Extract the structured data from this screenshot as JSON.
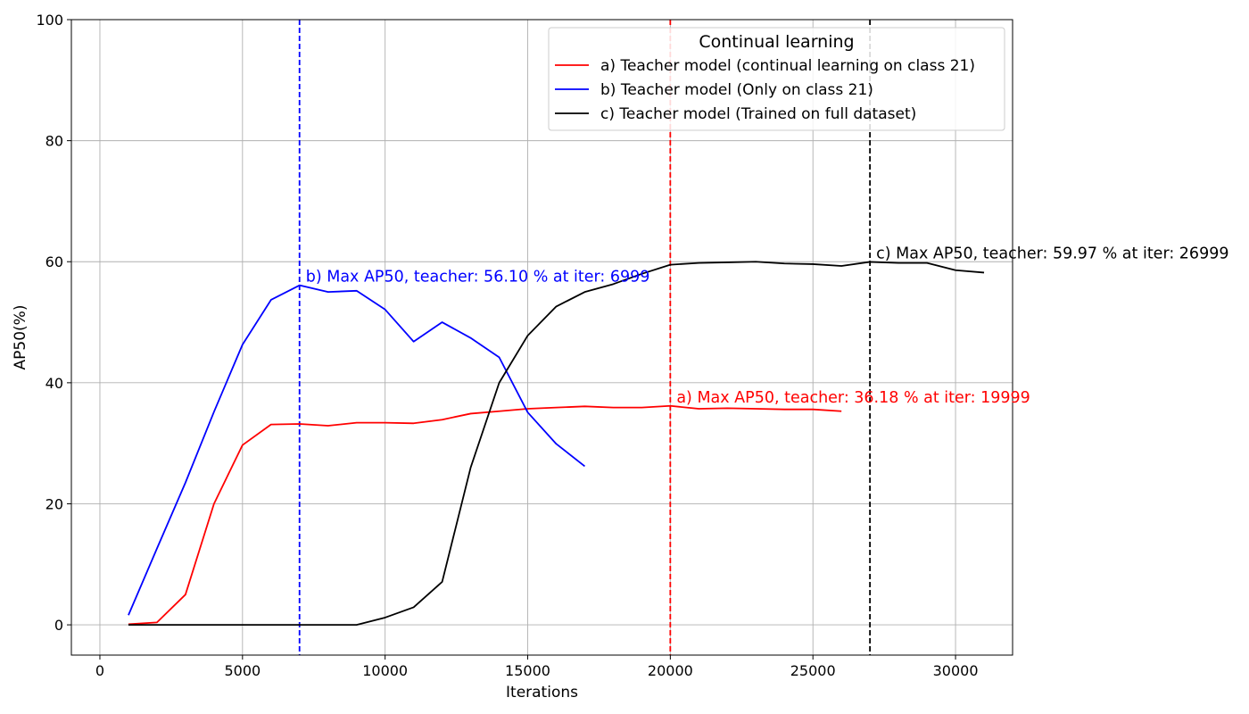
{
  "chart_data": {
    "type": "line",
    "title": "",
    "xlabel": "Iterations",
    "ylabel": "AP50(%)",
    "xlim": [
      -1000,
      32000
    ],
    "ylim": [
      -5,
      100
    ],
    "xticks": [
      0,
      5000,
      10000,
      15000,
      20000,
      25000,
      30000
    ],
    "yticks": [
      0,
      20,
      40,
      60,
      80,
      100
    ],
    "grid": true,
    "legend": {
      "title": "Continual learning",
      "placement": "top-right"
    },
    "series": [
      {
        "name": "a) Teacher model (continual learning on class 21)",
        "color": "#ff0000",
        "x": [
          1000,
          2000,
          3000,
          4000,
          5000,
          6000,
          7000,
          8000,
          9000,
          10000,
          11000,
          12000,
          13000,
          14000,
          15000,
          16000,
          17000,
          18000,
          19000,
          20000,
          21000,
          22000,
          23000,
          24000,
          25000,
          26000
        ],
        "y": [
          0.1,
          0.4,
          5.0,
          20.0,
          29.7,
          33.1,
          33.2,
          32.9,
          33.4,
          33.4,
          33.3,
          33.9,
          34.9,
          35.3,
          35.7,
          35.9,
          36.1,
          35.9,
          35.9,
          36.18,
          35.7,
          35.8,
          35.7,
          35.6,
          35.6,
          35.3
        ]
      },
      {
        "name": "b) Teacher model (Only on class 21)",
        "color": "#0000ff",
        "x": [
          1000,
          2000,
          3000,
          4000,
          5000,
          6000,
          7000,
          8000,
          9000,
          10000,
          11000,
          12000,
          13000,
          14000,
          15000,
          16000,
          17000
        ],
        "y": [
          1.6,
          12.6,
          23.5,
          35.2,
          46.3,
          53.7,
          56.1,
          55.0,
          55.2,
          52.1,
          46.8,
          50.0,
          47.4,
          44.2,
          35.1,
          29.9,
          26.2
        ]
      },
      {
        "name": "c) Teacher model (Trained on full dataset)",
        "color": "#000000",
        "x": [
          1000,
          2000,
          3000,
          4000,
          5000,
          6000,
          7000,
          8000,
          9000,
          10000,
          11000,
          12000,
          13000,
          14000,
          15000,
          16000,
          17000,
          18000,
          19000,
          20000,
          21000,
          22000,
          23000,
          24000,
          25000,
          26000,
          27000,
          28000,
          29000,
          30000,
          31000
        ],
        "y": [
          0,
          0,
          0,
          0,
          0,
          0,
          0,
          0,
          0,
          1.2,
          2.9,
          7.1,
          26.0,
          40.0,
          47.8,
          52.6,
          55.0,
          56.3,
          58.0,
          59.5,
          59.8,
          59.9,
          60.0,
          59.7,
          59.6,
          59.3,
          59.97,
          59.8,
          59.8,
          58.6,
          58.2
        ]
      }
    ],
    "vlines": [
      {
        "x": 6999,
        "color": "#0000ff",
        "style": "dashed"
      },
      {
        "x": 19999,
        "color": "#ff0000",
        "style": "dashed"
      },
      {
        "x": 26999,
        "color": "#000000",
        "style": "dashed"
      }
    ],
    "annotations": [
      {
        "text": "b) Max AP50, teacher: 56.10 % at iter: 6999",
        "x": 6999,
        "y": 56.1,
        "color": "#0000ff"
      },
      {
        "text": "a) Max AP50, teacher: 36.18 % at iter: 19999",
        "x": 19999,
        "y": 36.18,
        "color": "#ff0000"
      },
      {
        "text": "c) Max AP50, teacher: 59.97 % at iter: 26999",
        "x": 26999,
        "y": 59.97,
        "color": "#000000"
      }
    ]
  }
}
